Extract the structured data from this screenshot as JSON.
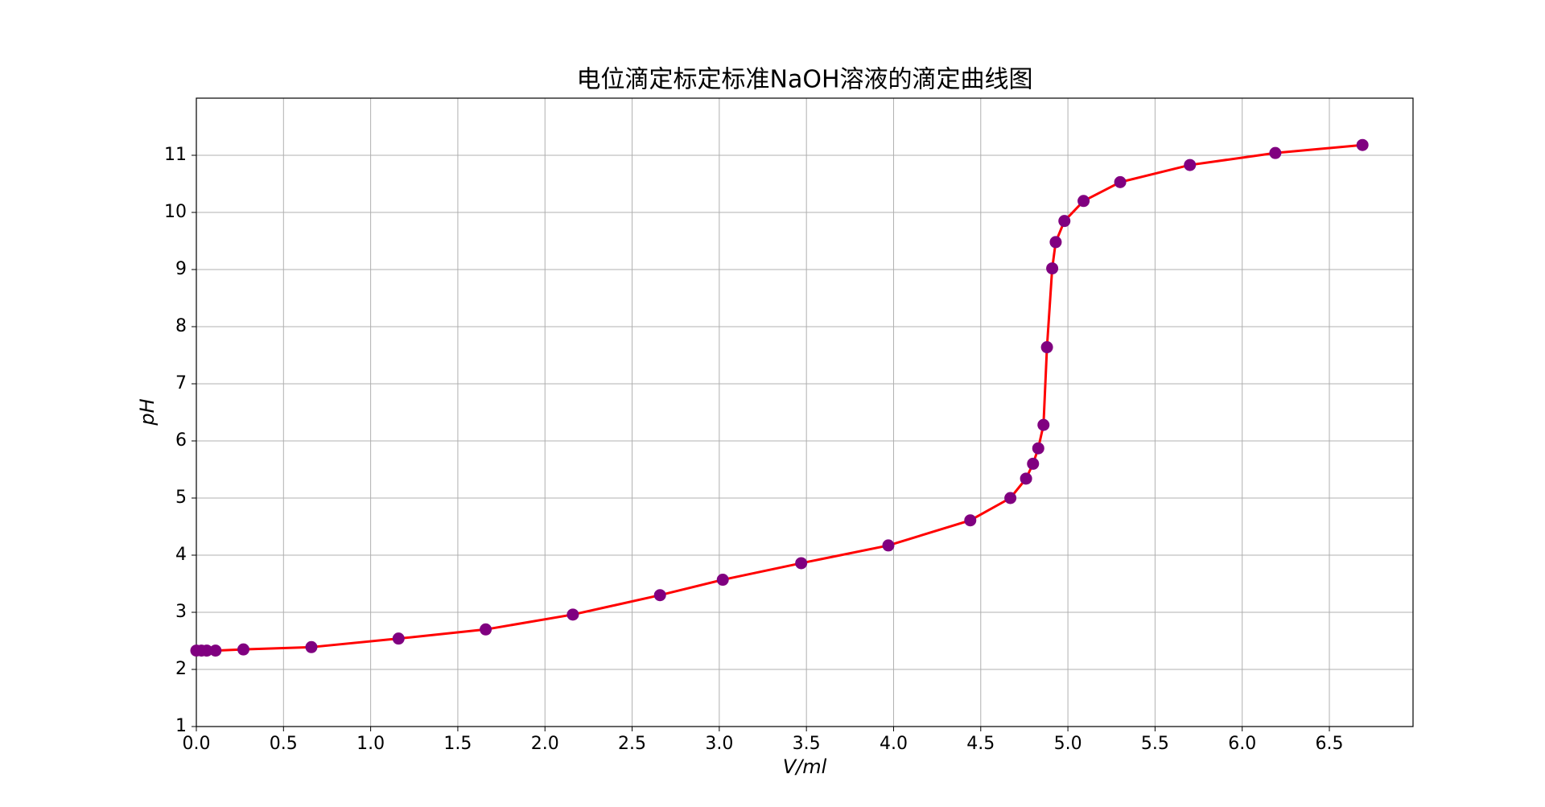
{
  "chart_data": {
    "type": "line",
    "title": "电位滴定标定标准NaOH溶液的滴定曲线图",
    "xlabel": "V/ml",
    "ylabel": "pH",
    "x": [
      0,
      0.03,
      0.06,
      0.11,
      0.27,
      0.66,
      1.16,
      1.66,
      2.16,
      2.66,
      3.02,
      3.47,
      3.97,
      4.44,
      4.67,
      4.76,
      4.8,
      4.83,
      4.86,
      4.88,
      4.91,
      4.93,
      4.98,
      5.09,
      5.3,
      5.7,
      6.19,
      6.69
    ],
    "series": [
      {
        "line_color": "#ff0000",
        "marker_color": "#800080",
        "values": [
          2.33,
          2.33,
          2.33,
          2.33,
          2.35,
          2.39,
          2.54,
          2.7,
          2.96,
          3.3,
          3.57,
          3.86,
          4.17,
          4.61,
          5.0,
          5.34,
          5.6,
          5.87,
          6.28,
          7.64,
          9.02,
          9.48,
          9.85,
          10.2,
          10.53,
          10.83,
          11.04,
          11.18
        ]
      }
    ],
    "xlim": [
      0,
      6.98
    ],
    "ylim": [
      1,
      12
    ],
    "xticks": [
      {
        "value": 0,
        "label": "0.0"
      },
      0.5,
      {
        "value": 1,
        "label": "1.0"
      },
      1.5,
      {
        "value": 2,
        "label": "2.0"
      },
      2.5,
      {
        "value": 3,
        "label": "3.0"
      },
      3.5,
      {
        "value": 4,
        "label": "4.0"
      },
      4.5,
      {
        "value": 5,
        "label": "5.0"
      },
      5.5,
      {
        "value": 6,
        "label": "6.0"
      },
      6.5
    ],
    "yticks": [
      1,
      2,
      3,
      4,
      5,
      6,
      7,
      8,
      9,
      10,
      11
    ],
    "grid": true
  }
}
